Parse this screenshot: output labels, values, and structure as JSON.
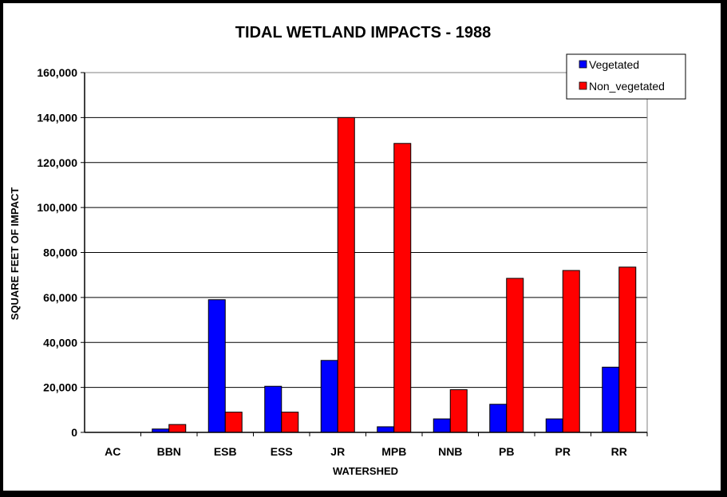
{
  "colors": {
    "vegetated": "#0000FF",
    "non_vegetated": "#FF0000",
    "grid": "#000000",
    "frame": "#000000",
    "plot_background": "#FFFFFF"
  },
  "chart_data": {
    "type": "bar",
    "title": "TIDAL WETLAND IMPACTS - 1988",
    "xlabel": "WATERSHED",
    "ylabel": "SQUARE FEET OF IMPACT",
    "categories": [
      "AC",
      "BBN",
      "ESB",
      "ESS",
      "JR",
      "MPB",
      "NNB",
      "PB",
      "PR",
      "RR"
    ],
    "series": [
      {
        "name": "Vegetated",
        "color": "#0000FF",
        "values": [
          0,
          1500,
          59000,
          20500,
          32000,
          2500,
          6000,
          12500,
          6000,
          29000
        ]
      },
      {
        "name": "Non_vegetated",
        "color": "#FF0000",
        "values": [
          0,
          3500,
          9000,
          9000,
          140000,
          128500,
          19000,
          68500,
          72000,
          73500
        ]
      }
    ],
    "ylim": [
      0,
      160000
    ],
    "yticks": [
      0,
      20000,
      40000,
      60000,
      80000,
      100000,
      120000,
      140000,
      160000
    ],
    "ytick_labels": [
      "0",
      "20,000",
      "40,000",
      "60,000",
      "80,000",
      "100,000",
      "120,000",
      "140,000",
      "160,000"
    ],
    "grid": true,
    "legend_position": "top-right"
  }
}
